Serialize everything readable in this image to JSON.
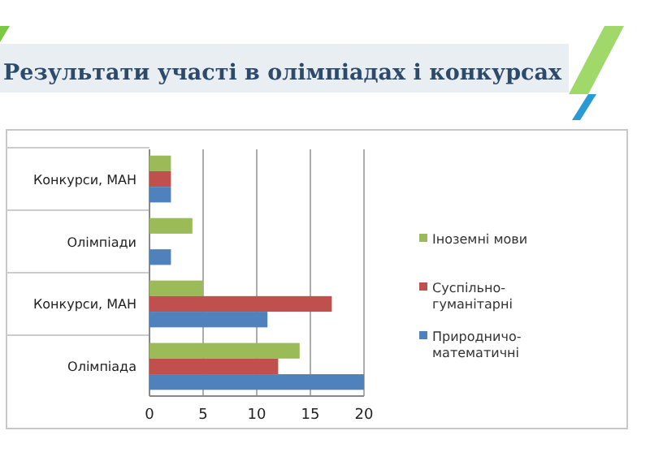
{
  "chart_data": {
    "type": "bar",
    "orientation": "horizontal",
    "title": "Результати участі в олімпіадах і конкурсах",
    "categories": [
      "Конкурси, МАН",
      "Олімпіади",
      "Конкурси, МАН",
      "Олімпіада"
    ],
    "series": [
      {
        "name": "Іноземні мови",
        "color": "#9bbb59",
        "values": [
          2,
          4,
          5,
          14
        ]
      },
      {
        "name": "Суспільно-гуманітарні",
        "color": "#c0504d",
        "values": [
          2,
          null,
          17,
          12
        ]
      },
      {
        "name": "Природничо-математичні",
        "color": "#4f81bd",
        "values": [
          2,
          2,
          11,
          20
        ]
      }
    ],
    "xlim": [
      0,
      20
    ],
    "xticks": [
      0,
      5,
      10,
      15,
      20
    ],
    "grid": "x",
    "legend": "right"
  }
}
